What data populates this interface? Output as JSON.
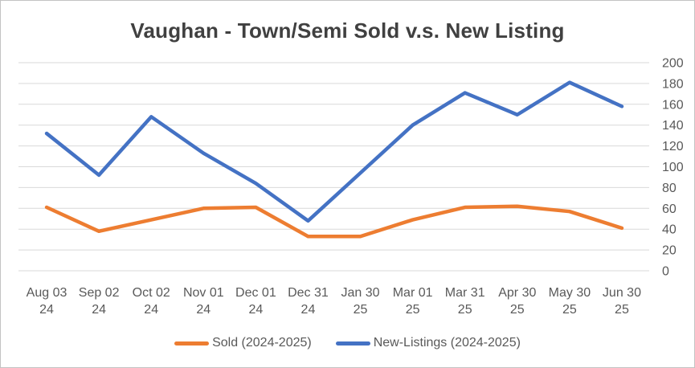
{
  "window": {
    "background": "#ffffff",
    "border_color": "#c3c3c3"
  },
  "chart_data": {
    "type": "line",
    "title": "Vaughan - Town/Semi Sold v.s. New Listing",
    "categories": [
      [
        "Aug 03",
        "24"
      ],
      [
        "Sep 02",
        "24"
      ],
      [
        "Oct 02",
        "24"
      ],
      [
        "Nov 01",
        "24"
      ],
      [
        "Dec 01",
        "24"
      ],
      [
        "Dec 31",
        "24"
      ],
      [
        "Jan 30",
        "25"
      ],
      [
        "Mar 01",
        "25"
      ],
      [
        "Mar 31",
        "25"
      ],
      [
        "Apr 30",
        "25"
      ],
      [
        "May 30",
        "25"
      ],
      [
        "Jun 30",
        "25"
      ]
    ],
    "series": [
      {
        "key": "sold",
        "name": "Sold (2024-2025)",
        "color": "#ED7D31",
        "values": [
          61,
          38,
          49,
          60,
          61,
          33,
          33,
          49,
          61,
          62,
          57,
          41
        ]
      },
      {
        "key": "new-listings",
        "name": "New-Listings (2024-2025)",
        "color": "#4472C4",
        "values": [
          132,
          92,
          148,
          113,
          84,
          48,
          94,
          140,
          171,
          150,
          181,
          158
        ]
      }
    ],
    "ylim": [
      0,
      200
    ],
    "yticks": [
      0,
      20,
      40,
      60,
      80,
      100,
      120,
      140,
      160,
      180,
      200
    ],
    "grid": true,
    "gridline_color": "#D9D9D9",
    "axis_text_color": "#595959",
    "title_color": "#404040",
    "legend_position": "bottom",
    "line_width": 4.5
  }
}
